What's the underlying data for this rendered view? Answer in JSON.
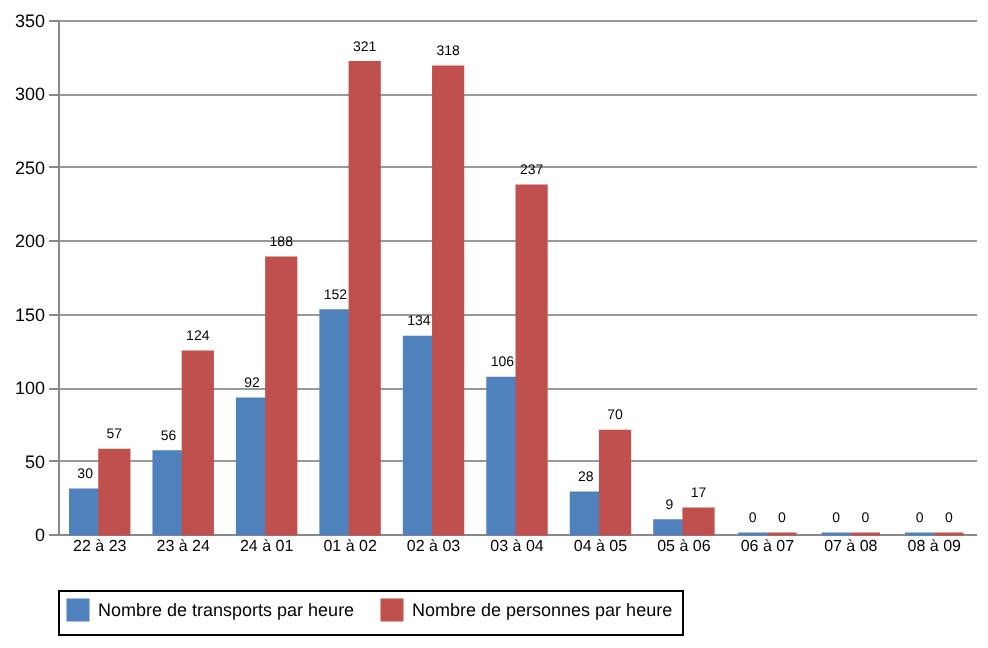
{
  "chart_data": {
    "type": "bar",
    "categories": [
      "22 à 23",
      "23 à 24",
      "24 à 01",
      "01 à 02",
      "02 à 03",
      "03 à 04",
      "04 à 05",
      "05 à 06",
      "06 à 07",
      "07 à 08",
      "08 à 09"
    ],
    "series": [
      {
        "name": "Nombre de transports par heure",
        "color": "#4f81bd",
        "values": [
          30,
          56,
          92,
          152,
          134,
          106,
          28,
          9,
          0,
          0,
          0
        ]
      },
      {
        "name": "Nombre de personnes par heure",
        "color": "#c0504d",
        "values": [
          57,
          124,
          188,
          321,
          318,
          237,
          70,
          17,
          0,
          0,
          0
        ]
      }
    ],
    "ylim": [
      0,
      350
    ],
    "yticks": [
      0,
      50,
      100,
      150,
      200,
      250,
      300,
      350
    ],
    "grid": "y",
    "legend": "bottom",
    "data_labels": true
  }
}
